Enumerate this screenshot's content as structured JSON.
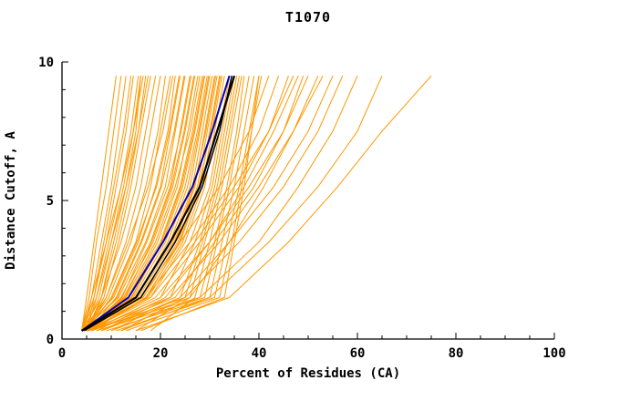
{
  "chart_data": {
    "type": "line",
    "title": "T1070",
    "xlabel": "Percent of Residues (CA)",
    "ylabel": "Distance Cutoff, A",
    "xlim": [
      0,
      100
    ],
    "ylim": [
      0,
      10
    ],
    "x_ticks": [
      0,
      20,
      40,
      60,
      80,
      100
    ],
    "y_ticks": [
      0,
      5,
      10
    ],
    "x_minor_step": 5,
    "y_minor_step": 1,
    "grid": false,
    "legend": "none",
    "axis_color": "#000000",
    "model_line_color": "#ff9800",
    "cutoff_levels": [
      0.3,
      1.5,
      3.5,
      5.5,
      7.5,
      9.5
    ],
    "model_curves_percent_at_cutoff": [
      [
        4,
        5,
        6.5,
        8,
        9.5,
        11
      ],
      [
        4,
        5.5,
        7,
        9,
        10.5,
        12
      ],
      [
        4.5,
        6,
        8,
        10,
        11.5,
        13
      ],
      [
        5,
        6.5,
        8.5,
        10.5,
        12.5,
        14
      ],
      [
        4,
        6,
        9,
        11,
        13,
        14.5
      ],
      [
        5,
        7,
        9.5,
        12,
        14,
        15.5
      ],
      [
        4.5,
        7.5,
        10,
        12.5,
        14.5,
        16
      ],
      [
        5,
        8,
        11,
        13.5,
        15.5,
        17
      ],
      [
        4,
        6.5,
        9,
        12,
        14.5,
        16.5
      ],
      [
        5.5,
        8,
        10.5,
        13,
        15,
        16
      ],
      [
        4,
        7,
        10,
        13,
        15.5,
        17.5
      ],
      [
        5,
        8.5,
        11.5,
        14,
        16,
        18
      ],
      [
        4,
        8,
        12,
        15,
        17,
        19
      ],
      [
        5,
        9,
        13,
        16,
        18,
        20
      ],
      [
        4.5,
        9.5,
        14,
        17,
        19.5,
        21
      ],
      [
        5,
        10,
        15,
        18,
        20,
        22
      ],
      [
        4,
        10.5,
        15.5,
        19,
        21.5,
        23
      ],
      [
        5.5,
        11,
        16,
        20,
        22,
        24
      ],
      [
        4,
        11.5,
        17,
        21,
        23,
        25
      ],
      [
        5,
        12,
        18,
        22,
        24,
        26
      ],
      [
        4.5,
        12.5,
        18.5,
        22.5,
        25,
        27
      ],
      [
        5,
        13,
        19,
        23,
        26,
        28
      ],
      [
        4,
        13.5,
        20,
        24,
        26.5,
        28.5
      ],
      [
        5.5,
        14,
        20.5,
        24.5,
        27,
        29
      ],
      [
        4,
        14.5,
        21,
        25,
        27.5,
        29.5
      ],
      [
        5,
        15,
        22,
        26,
        28,
        30
      ],
      [
        4.5,
        15.5,
        22.5,
        26.5,
        28.5,
        30.5
      ],
      [
        5,
        16,
        23,
        27,
        29,
        31
      ],
      [
        4,
        16.5,
        23.5,
        27.5,
        29.5,
        31.5
      ],
      [
        5.5,
        17,
        24,
        28,
        30,
        32
      ],
      [
        4,
        17.5,
        24.5,
        28.5,
        30.5,
        32.5
      ],
      [
        5,
        18,
        25,
        29,
        31,
        33
      ],
      [
        4.2,
        9,
        13.5,
        17.5,
        20.5,
        22.5
      ],
      [
        4.8,
        10.2,
        15.2,
        19.2,
        21.8,
        23.8
      ],
      [
        4.3,
        11.2,
        16.2,
        20.2,
        22.8,
        24.8
      ],
      [
        5.2,
        12.2,
        17.2,
        21.5,
        24.2,
        26.2
      ],
      [
        4.6,
        12.8,
        18.2,
        22.2,
        24.8,
        26.8
      ],
      [
        5.4,
        13.4,
        19.4,
        23.4,
        25.6,
        27.6
      ],
      [
        4.1,
        14.2,
        20.2,
        24.2,
        26.8,
        28.8
      ],
      [
        5.1,
        15.2,
        21.5,
        25.5,
        27.8,
        29.8
      ],
      [
        4.7,
        16.2,
        22.8,
        26.8,
        29.2,
        31.2
      ],
      [
        5.3,
        17.2,
        23.8,
        27.8,
        30.2,
        32.2
      ],
      [
        6,
        20,
        26,
        30,
        32,
        34
      ],
      [
        8,
        22,
        27,
        30.5,
        32.5,
        34.5
      ],
      [
        10,
        24,
        28,
        31,
        33,
        35
      ],
      [
        12,
        25,
        28.5,
        31.5,
        33.5,
        35.5
      ],
      [
        15,
        26,
        29,
        32,
        34,
        36
      ],
      [
        18,
        27,
        30,
        32.5,
        34.5,
        36.5
      ],
      [
        5,
        28,
        31,
        33.5,
        35.5,
        37
      ],
      [
        7,
        29,
        31.5,
        34,
        36,
        38
      ],
      [
        9,
        30,
        32.5,
        35,
        37,
        39
      ],
      [
        11,
        31,
        33.5,
        36,
        38,
        40
      ],
      [
        13,
        32,
        34.5,
        36.5,
        38.5,
        40.5
      ],
      [
        16,
        33,
        35,
        37,
        38.5,
        40
      ],
      [
        5,
        16,
        24,
        32,
        38,
        42
      ],
      [
        6,
        17,
        26,
        34,
        40,
        44
      ],
      [
        5,
        19,
        28,
        36,
        42,
        46
      ],
      [
        7,
        21,
        30,
        37,
        43,
        48
      ],
      [
        6,
        23,
        31,
        39,
        45,
        49
      ],
      [
        8,
        26,
        34,
        41,
        47,
        53
      ],
      [
        5,
        18,
        27,
        35,
        42,
        47
      ],
      [
        6,
        20,
        30,
        38,
        45,
        50
      ],
      [
        5,
        22,
        32,
        40,
        47,
        52
      ],
      [
        8,
        24,
        34,
        43,
        50,
        55
      ],
      [
        6,
        25,
        36,
        45,
        52,
        57
      ],
      [
        10,
        28,
        40,
        48,
        55,
        60
      ],
      [
        12,
        30,
        42,
        52,
        60,
        65
      ],
      [
        15,
        34,
        46,
        56,
        65,
        75
      ]
    ],
    "highlighted_curves": [
      {
        "name": "highlight-curve-blue",
        "color": "#0000bb",
        "width": 2,
        "percent_at_cutoff": [
          4,
          13.5,
          20.5,
          26.5,
          30.5,
          34
        ]
      },
      {
        "name": "highlight-curve-black-1",
        "color": "#000000",
        "width": 2.2,
        "percent_at_cutoff": [
          4,
          15,
          22,
          28,
          31.5,
          35
        ]
      },
      {
        "name": "highlight-curve-black-2",
        "color": "#000000",
        "width": 1.5,
        "percent_at_cutoff": [
          4.5,
          16,
          23,
          28.5,
          32,
          34.5
        ]
      }
    ]
  }
}
